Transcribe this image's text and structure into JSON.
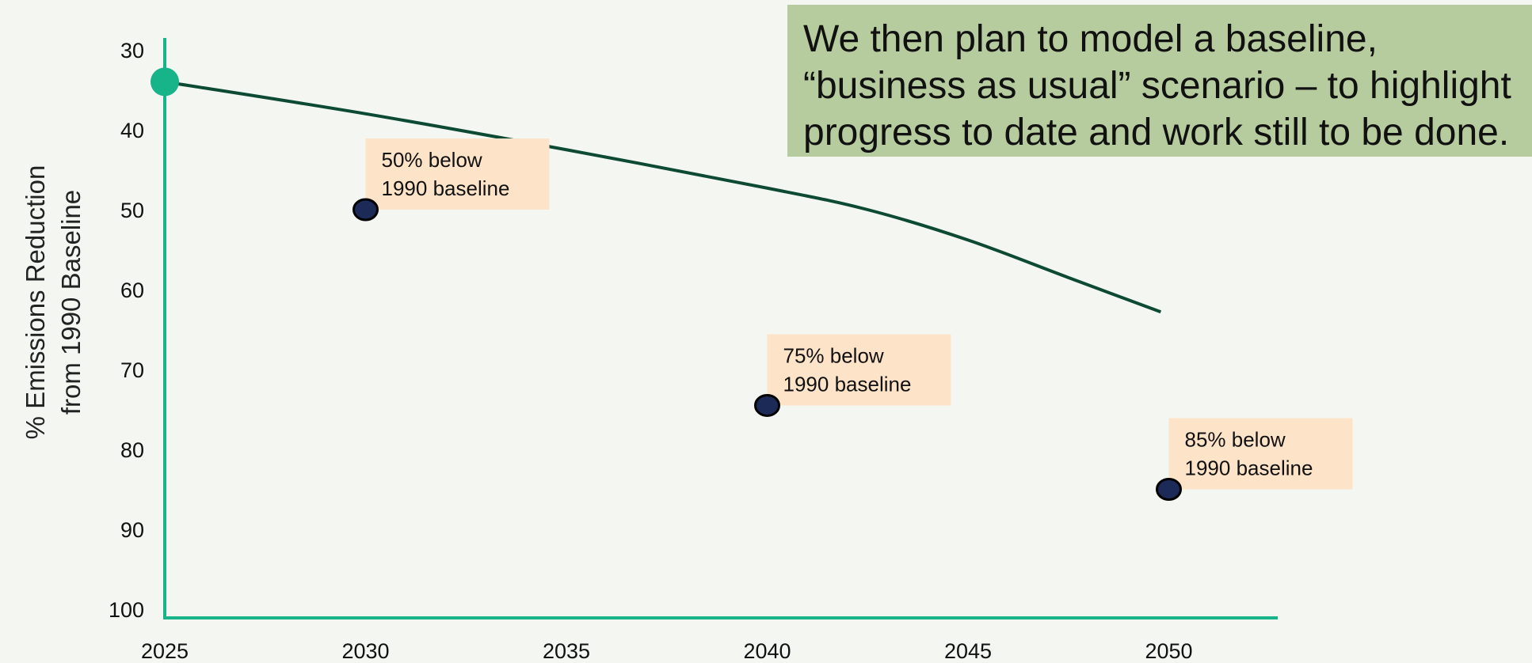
{
  "colors": {
    "background": "#f3f6f1",
    "axis": "#17b389",
    "baseline_line": "#0d4a33",
    "start_marker": "#17b389",
    "target_marker": "#1b2a57",
    "annotation_bg": "#fde3c8",
    "callout_bg": "#b6cc9e"
  },
  "callout": {
    "lines": [
      "We then plan to model a baseline,",
      "“business as usual” scenario – to highlight",
      "progress to date and work still to be done."
    ]
  },
  "chart_data": {
    "type": "line",
    "ylabel_lines": [
      "% Emissions Reduction",
      "from 1990 Baseline"
    ],
    "xlabel": "",
    "title": "",
    "y_reversed": true,
    "ylim": [
      30,
      100
    ],
    "xlim": [
      2025,
      2052
    ],
    "y_ticks": [
      30,
      40,
      50,
      60,
      70,
      80,
      90,
      100
    ],
    "x_ticks": [
      2025,
      2030,
      2035,
      2040,
      2045,
      2050
    ],
    "grid": false,
    "series": [
      {
        "x": [
          2025,
          2030,
          2035,
          2040,
          2042.5,
          2045,
          2047.5,
          2049.8
        ],
        "y": [
          34,
          38,
          42.5,
          47.3,
          50,
          53.8,
          58.5,
          62.8
        ]
      }
    ],
    "start_point": {
      "x": 2025,
      "y": 34
    },
    "targets": [
      {
        "x": 2030,
        "y": 50,
        "label_lines": [
          "50% below",
          "1990 baseline"
        ]
      },
      {
        "x": 2040,
        "y": 74.5,
        "label_lines": [
          "75% below",
          "1990 baseline"
        ]
      },
      {
        "x": 2050,
        "y": 85,
        "label_lines": [
          "85% below",
          "1990 baseline"
        ]
      }
    ]
  }
}
